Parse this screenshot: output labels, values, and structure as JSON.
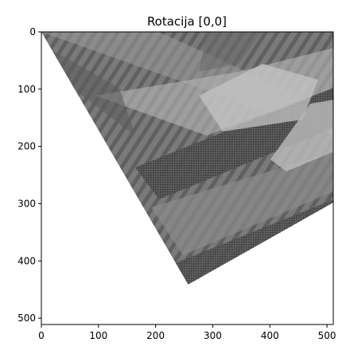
{
  "chart_data": {
    "type": "image",
    "title": "Rotacija [0,0]",
    "xlim": [
      0,
      511
    ],
    "ylim": [
      511,
      0
    ],
    "x_ticks": [
      0,
      100,
      200,
      300,
      400,
      500
    ],
    "y_ticks": [
      0,
      100,
      200,
      300,
      400,
      500
    ],
    "image_region_vertices": [
      [
        0,
        0
      ],
      [
        511,
        0
      ],
      [
        511,
        298
      ],
      [
        257,
        441
      ]
    ],
    "background_color": "#ffffff",
    "image_colormap": "gray"
  }
}
